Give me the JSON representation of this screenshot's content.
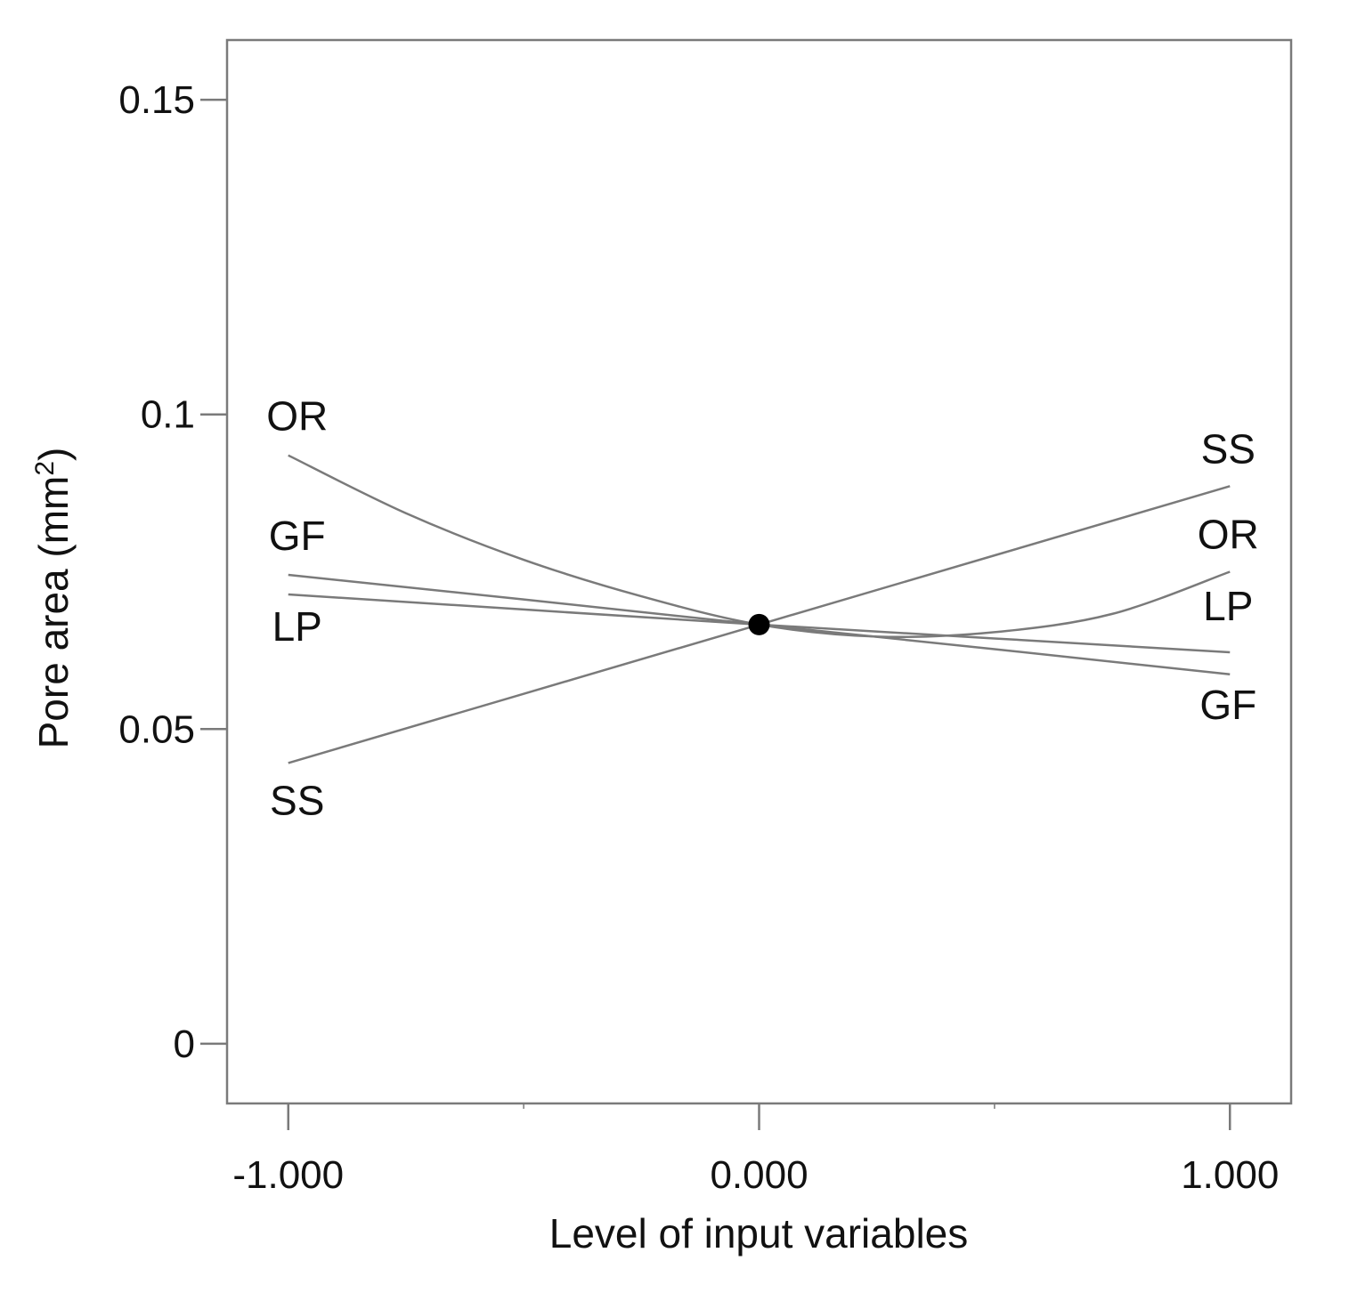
{
  "chart_data": {
    "type": "line",
    "xlabel": "Level of input variables",
    "ylabel": "Pore area (mm",
    "ylabel_superscript": "2",
    "ylabel_close": ")",
    "xlim": [
      -1.13,
      1.13
    ],
    "ylim": [
      -0.0095,
      0.1595
    ],
    "x_ticks": [
      {
        "value": -1.0,
        "label": "-1.000"
      },
      {
        "value": 0.0,
        "label": "0.000"
      },
      {
        "value": 1.0,
        "label": "1.000"
      }
    ],
    "x_minor_ticks": [
      -0.5,
      0.5
    ],
    "y_ticks": [
      {
        "value": 0.0,
        "label": "0"
      },
      {
        "value": 0.05,
        "label": "0.05"
      },
      {
        "value": 0.1,
        "label": "0.1"
      },
      {
        "value": 0.15,
        "label": "0.15"
      }
    ],
    "center_point": {
      "x": 0.0,
      "y": 0.0666
    },
    "series": [
      {
        "name": "OR",
        "x": [
          -1.0,
          -0.75,
          -0.5,
          -0.25,
          0.0,
          0.25,
          0.5,
          0.75,
          1.0
        ],
        "y": [
          0.0935,
          0.0843,
          0.0769,
          0.0711,
          0.0666,
          0.0647,
          0.0654,
          0.0683,
          0.075
        ],
        "label_left": "OR",
        "label_right": "OR"
      },
      {
        "name": "GF",
        "x": [
          -1.0,
          -0.5,
          0.0,
          0.5,
          1.0
        ],
        "y": [
          0.0745,
          0.0706,
          0.0666,
          0.0627,
          0.0587
        ],
        "label_left": "GF",
        "label_right": "GF"
      },
      {
        "name": "LP",
        "x": [
          -1.0,
          -0.5,
          0.0,
          0.5,
          1.0
        ],
        "y": [
          0.0714,
          0.069,
          0.0666,
          0.0644,
          0.0622
        ],
        "label_left": "LP",
        "label_right": "LP"
      },
      {
        "name": "SS",
        "x": [
          -1.0,
          -0.5,
          0.0,
          0.5,
          1.0
        ],
        "y": [
          0.0446,
          0.0556,
          0.0666,
          0.0776,
          0.0886
        ],
        "label_left": "SS",
        "label_right": "SS"
      }
    ]
  }
}
